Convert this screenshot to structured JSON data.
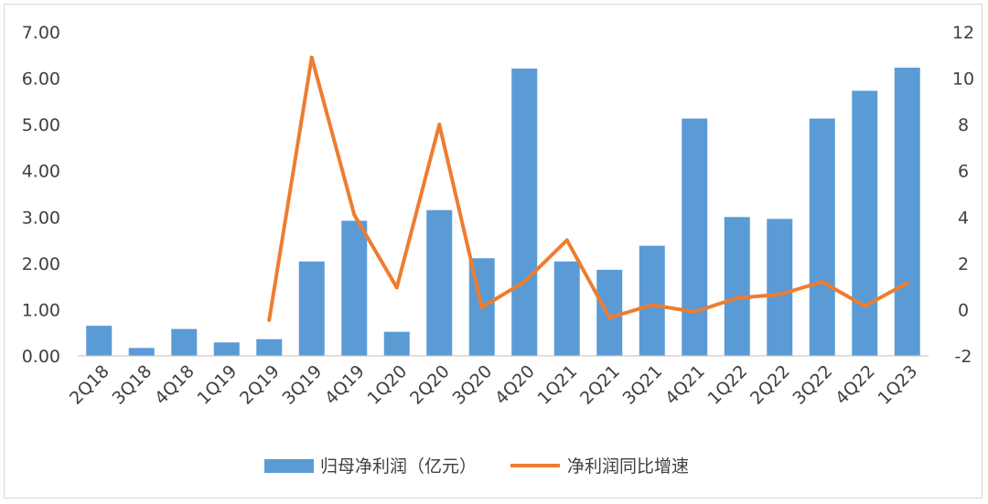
{
  "chart_data": {
    "type": "bar",
    "categories": [
      "2Q18",
      "3Q18",
      "4Q18",
      "1Q19",
      "2Q19",
      "3Q19",
      "4Q19",
      "1Q20",
      "2Q20",
      "3Q20",
      "4Q20",
      "1Q21",
      "2Q21",
      "3Q21",
      "4Q21",
      "1Q22",
      "2Q22",
      "3Q22",
      "4Q22",
      "1Q23"
    ],
    "y_left": {
      "ticks": [
        "0.00",
        "1.00",
        "2.00",
        "3.00",
        "4.00",
        "5.00",
        "6.00",
        "7.00"
      ],
      "ylim": [
        0,
        7
      ]
    },
    "y_right": {
      "ticks": [
        "-2",
        "0",
        "2",
        "4",
        "6",
        "8",
        "10",
        "12"
      ],
      "ylim": [
        -2,
        12
      ]
    },
    "series": [
      {
        "name": "归母净利润（亿元）",
        "type": "bar",
        "axis": "left",
        "color": "#5b9bd5",
        "values": [
          0.65,
          0.17,
          0.58,
          0.29,
          0.36,
          2.04,
          2.92,
          0.52,
          3.15,
          2.11,
          6.21,
          2.04,
          1.86,
          2.38,
          5.13,
          3.0,
          2.96,
          5.13,
          5.73,
          6.23
        ]
      },
      {
        "name": "净利润同比增速",
        "type": "line",
        "axis": "right",
        "color": "#ed7d31",
        "values": [
          null,
          null,
          null,
          null,
          -0.45,
          10.9,
          4.1,
          0.95,
          8.0,
          0.1,
          1.2,
          3.0,
          -0.35,
          0.2,
          -0.1,
          0.5,
          0.65,
          1.2,
          0.15,
          1.15
        ]
      }
    ],
    "grid": false,
    "legend_position": "bottom"
  }
}
